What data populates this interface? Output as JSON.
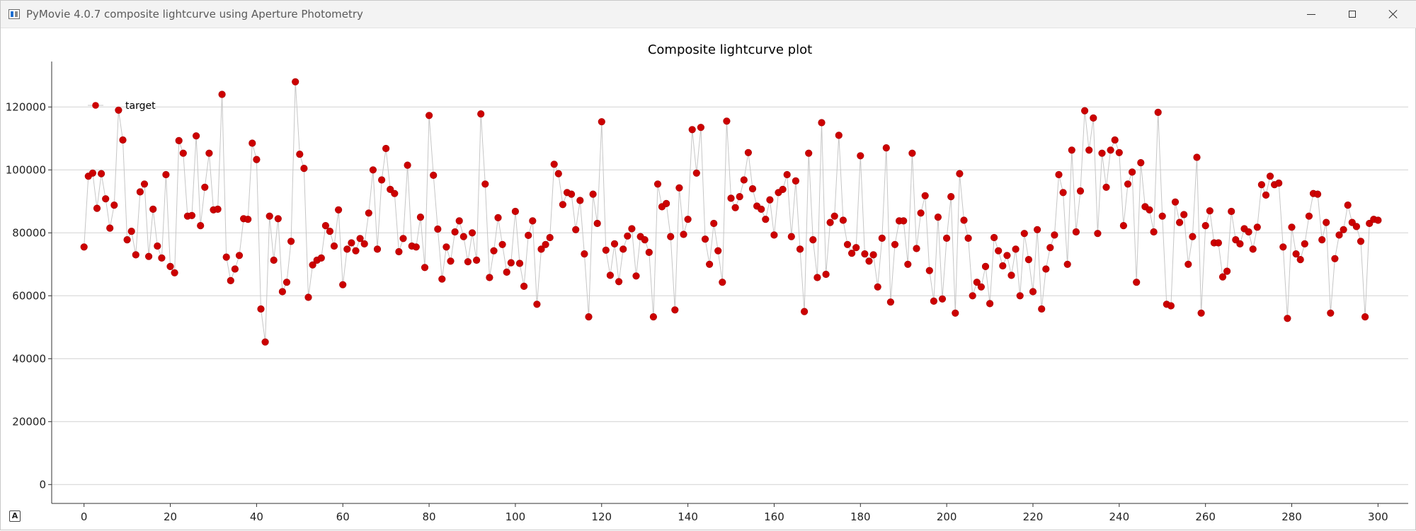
{
  "window": {
    "title": "PyMovie 4.0.7 composite lightcurve using Aperture Photometry",
    "icon": "chart-window-icon",
    "badge": "A"
  },
  "chart_data": {
    "type": "scatter",
    "title": "Composite lightcurve plot",
    "xlabel": "",
    "ylabel": "",
    "xlim": [
      -7.5,
      307
    ],
    "ylim": [
      -6000,
      134000
    ],
    "xticks": [
      0,
      20,
      40,
      60,
      80,
      100,
      120,
      140,
      160,
      180,
      200,
      220,
      240,
      260,
      280,
      300
    ],
    "yticks": [
      0,
      20000,
      40000,
      60000,
      80000,
      100000,
      120000
    ],
    "grid": "horizontal",
    "legend": {
      "placement": "top-left",
      "entries": [
        "target"
      ]
    },
    "series": [
      {
        "name": "target",
        "marker_color": "#cc0000",
        "line_color": "#c0c0c0",
        "x_start": 0,
        "x_step": 1,
        "values": [
          75500,
          98000,
          99000,
          87800,
          98800,
          90800,
          81500,
          88800,
          119000,
          109500,
          77800,
          80500,
          73000,
          93000,
          95500,
          72500,
          87500,
          75800,
          72000,
          98500,
          69300,
          67300,
          109300,
          105300,
          85300,
          85500,
          110800,
          82300,
          94500,
          105300,
          87300,
          87500,
          124000,
          72300,
          64800,
          68500,
          72800,
          84500,
          84300,
          108500,
          103300,
          55800,
          45300,
          85300,
          71300,
          84500,
          61300,
          64300,
          77300,
          128000,
          105000,
          100500,
          59500,
          69800,
          71300,
          72000,
          82300,
          80500,
          75800,
          87300,
          63500,
          74800,
          76800,
          74300,
          78200,
          76500,
          86300,
          100000,
          74800,
          96800,
          106800,
          93800,
          92500,
          74000,
          78200,
          101500,
          75800,
          75500,
          85000,
          69000,
          117300,
          98300,
          81200,
          65300,
          75500,
          71000,
          80300,
          83800,
          78800,
          70800,
          80000,
          71300,
          117800,
          95500,
          65800,
          74300,
          84800,
          76300,
          67500,
          70500,
          86800,
          70300,
          63000,
          79200,
          83800,
          57300,
          74800,
          76300,
          78500,
          101800,
          98800,
          89000,
          92800,
          92300,
          81000,
          90300,
          73300,
          53300,
          92300,
          83000,
          115300,
          74500,
          66500,
          76500,
          64500,
          74800,
          79000,
          81300,
          66300,
          78800,
          77800,
          73800,
          53300,
          95500,
          88300,
          89300,
          78800,
          55500,
          94300,
          79500,
          84300,
          112800,
          99000,
          113500,
          78000,
          70000,
          83000,
          74300,
          64300,
          115500,
          91000,
          88000,
          91500,
          96800,
          105500,
          94000,
          88500,
          87500,
          84300,
          90500,
          79300,
          92800,
          93800,
          98500,
          78800,
          96500,
          74800,
          55000,
          105300,
          77800,
          65800,
          115000,
          66800,
          83300,
          85300,
          111000,
          84000,
          76300,
          73500,
          75300,
          104500,
          73300,
          71000,
          73000,
          62800,
          78300,
          107000,
          58000,
          76300,
          83800,
          83800,
          70000,
          105300,
          75000,
          86300,
          91800,
          68000,
          58300,
          85000,
          59000,
          78300,
          91500,
          54500,
          98800,
          84000,
          78300,
          60000,
          64300,
          62800,
          69300,
          57500,
          78500,
          74300,
          69500,
          72800,
          66500,
          74800,
          60000,
          79800,
          71500,
          61300,
          81000,
          55800,
          68500,
          75300,
          79300,
          98500,
          92800,
          70000,
          106300,
          80300,
          93300,
          118800,
          106300,
          116500,
          79800,
          105300,
          94500,
          106300,
          109500,
          105500,
          82300,
          95500,
          99300,
          64300,
          102300,
          88300,
          87300,
          80300,
          118300,
          85300,
          57300,
          56800,
          89800,
          83300,
          85800,
          70000,
          78800,
          104000,
          54500,
          82300,
          87000,
          76800,
          76800,
          66000,
          67800,
          86800,
          77800,
          76500,
          81300,
          80300,
          74800,
          81800,
          95300,
          92000,
          98000,
          95300,
          95800,
          75500,
          52800,
          81800,
          73300,
          71500,
          76500,
          85300,
          92500,
          92300,
          77800,
          83300,
          54500,
          71800,
          79300,
          81000,
          88800,
          83300,
          82000,
          77300,
          53300,
          83000,
          84300,
          84000
        ]
      }
    ]
  }
}
